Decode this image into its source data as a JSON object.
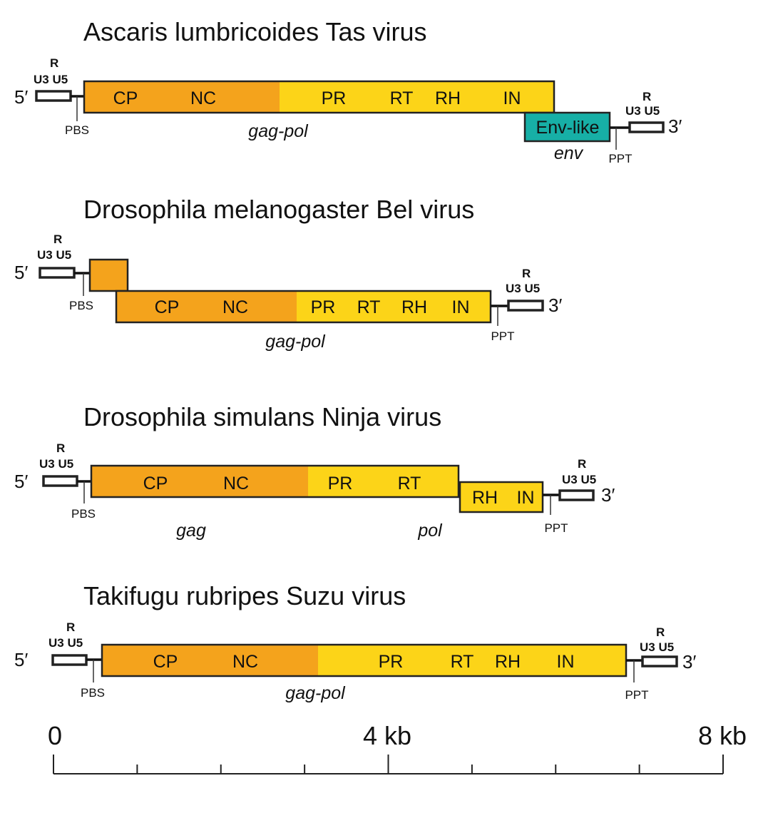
{
  "colors": {
    "gag": "#F4A31C",
    "pol": "#FCD418",
    "env": "#17AFA6",
    "outline": "#222222"
  },
  "ltr_labels": {
    "r": "R",
    "u3u5": "U3 U5",
    "five": "5′",
    "three": "3′",
    "pbs": "PBS",
    "ppt": "PPT"
  },
  "genomes": [
    {
      "title": "Ascaris lumbricoides Tas virus",
      "domains": [
        "CP",
        "NC",
        "PR",
        "RT",
        "RH",
        "IN"
      ],
      "env_domain": "Env-like",
      "genes": [
        "gag-pol",
        "env"
      ]
    },
    {
      "title": "Drosophila melanogaster Bel virus",
      "domains": [
        "CP",
        "NC",
        "PR",
        "RT",
        "RH",
        "IN"
      ],
      "genes": [
        "gag-pol"
      ]
    },
    {
      "title": "Drosophila simulans Ninja virus",
      "domains": [
        "CP",
        "NC",
        "PR",
        "RT",
        "RH",
        "IN"
      ],
      "genes": [
        "gag",
        "pol"
      ]
    },
    {
      "title": "Takifugu rubripes Suzu virus",
      "domains": [
        "CP",
        "NC",
        "PR",
        "RT",
        "RH",
        "IN"
      ],
      "genes": [
        "gag-pol"
      ]
    }
  ],
  "scale_bar": {
    "labels": [
      "0",
      "4 kb",
      "8 kb"
    ],
    "range_kb": [
      0,
      8
    ],
    "tick_step_kb": 1
  }
}
